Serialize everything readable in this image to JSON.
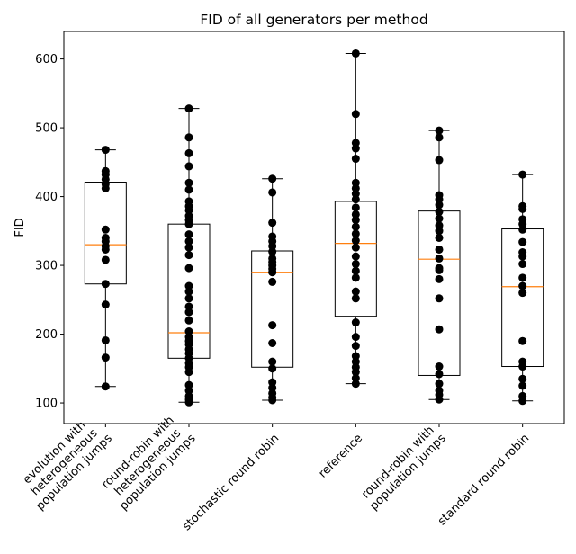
{
  "chart_data": {
    "type": "box",
    "title": "FID of all generators per method",
    "ylabel": "FID",
    "xlabel": "",
    "ylim": [
      70,
      640
    ],
    "yticks": [
      100,
      200,
      300,
      400,
      500,
      600
    ],
    "grid": false,
    "legend": "none",
    "colors": {
      "box": "#000000",
      "median": "#ff7f0e",
      "points": "#000000"
    },
    "categories": [
      [
        "evolution with",
        "heterogeneous",
        "population jumps"
      ],
      [
        "round-robin with",
        "heterogeneous",
        "population jumps"
      ],
      [
        "stochastic round robin"
      ],
      [
        "reference"
      ],
      [
        "round-robin with",
        "population jumps"
      ],
      [
        "standard round robin"
      ]
    ],
    "boxes": [
      {
        "min": 124,
        "q1": 273,
        "median": 330,
        "q3": 421,
        "max": 468,
        "points": [
          124,
          166,
          191,
          243,
          273,
          308,
          323,
          328,
          335,
          340,
          352,
          412,
          418,
          425,
          432,
          437,
          468
        ]
      },
      {
        "min": 101,
        "q1": 165,
        "median": 202,
        "q3": 360,
        "max": 528,
        "points": [
          101,
          105,
          110,
          118,
          126,
          145,
          152,
          158,
          165,
          172,
          178,
          185,
          190,
          196,
          204,
          220,
          232,
          240,
          252,
          262,
          270,
          296,
          315,
          326,
          335,
          345,
          360,
          366,
          372,
          380,
          386,
          393,
          410,
          420,
          444,
          463,
          486,
          528
        ]
      },
      {
        "min": 104,
        "q1": 152,
        "median": 290,
        "q3": 321,
        "max": 426,
        "points": [
          104,
          108,
          114,
          122,
          130,
          150,
          160,
          187,
          213,
          276,
          290,
          295,
          300,
          305,
          310,
          320,
          328,
          335,
          342,
          362,
          406,
          426
        ]
      },
      {
        "min": 128,
        "q1": 226,
        "median": 332,
        "q3": 393,
        "max": 608,
        "points": [
          128,
          136,
          145,
          152,
          160,
          168,
          183,
          196,
          217,
          252,
          262,
          282,
          292,
          302,
          313,
          326,
          336,
          346,
          356,
          366,
          374,
          384,
          396,
          404,
          412,
          420,
          455,
          470,
          478,
          520,
          608
        ]
      },
      {
        "min": 105,
        "q1": 140,
        "median": 309,
        "q3": 379,
        "max": 496,
        "points": [
          105,
          112,
          118,
          128,
          142,
          153,
          207,
          252,
          280,
          293,
          296,
          310,
          323,
          340,
          350,
          358,
          368,
          378,
          388,
          396,
          402,
          453,
          486,
          496
        ]
      },
      {
        "min": 103,
        "q1": 153,
        "median": 269,
        "q3": 353,
        "max": 432,
        "points": [
          103,
          110,
          125,
          135,
          153,
          160,
          190,
          260,
          270,
          282,
          302,
          313,
          319,
          334,
          352,
          360,
          367,
          382,
          386,
          432
        ]
      }
    ]
  }
}
